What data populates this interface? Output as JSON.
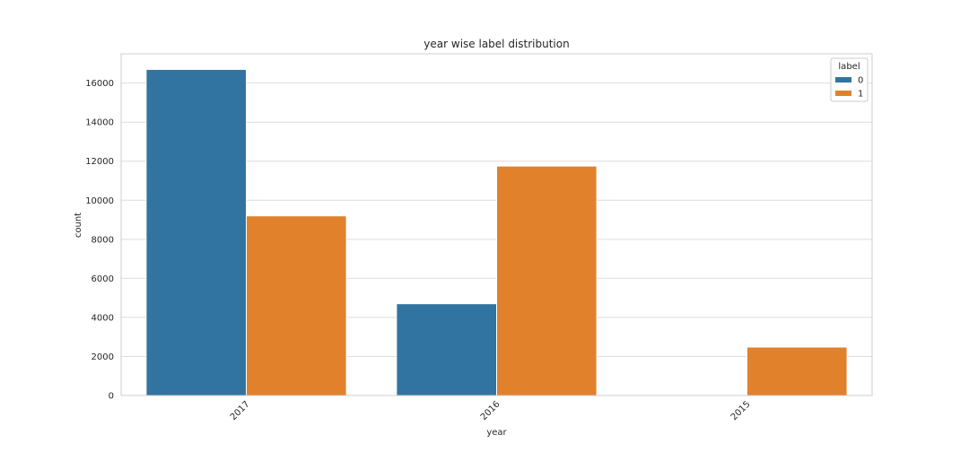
{
  "chart_data": {
    "type": "bar",
    "title": "year wise label distribution",
    "xlabel": "year",
    "ylabel": "count",
    "categories": [
      "2017",
      "2016",
      "2015"
    ],
    "series": [
      {
        "name": "0",
        "color": "#3274a1",
        "values": [
          16700,
          4700,
          0
        ]
      },
      {
        "name": "1",
        "color": "#e1812c",
        "values": [
          9200,
          11750,
          2480
        ]
      }
    ],
    "ylim": [
      0,
      17500
    ],
    "yticks": [
      0,
      2000,
      4000,
      6000,
      8000,
      10000,
      12000,
      14000,
      16000
    ],
    "legend": {
      "title": "label",
      "placement": "top-right"
    },
    "grid": "horizontal"
  }
}
